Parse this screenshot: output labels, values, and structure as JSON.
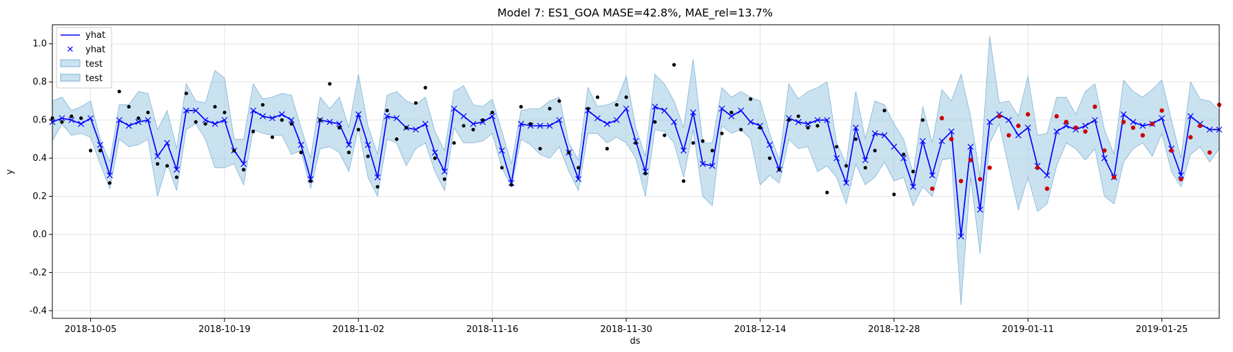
{
  "chart_data": {
    "type": "line",
    "title": "Model 7: ES1_GOA MASE=42.8%, MAE_rel=13.7%",
    "xlabel": "ds",
    "ylabel": "y",
    "x_start": "2018-10-01",
    "x_end": "2019-01-31",
    "ylim": [
      -0.44,
      1.1
    ],
    "grid": true,
    "legend_position": "top-left",
    "x_tick_labels": [
      "2018-10-05",
      "2018-10-19",
      "2018-11-02",
      "2018-11-16",
      "2018-11-30",
      "2018-12-14",
      "2018-12-28",
      "2019-01-11",
      "2019-01-25"
    ],
    "y_tick_labels": [
      "-0.4",
      "-0.2",
      "0.0",
      "0.2",
      "0.4",
      "0.6",
      "0.8",
      "1.0"
    ],
    "legend": [
      "yhat",
      "yhat",
      "test",
      "test"
    ],
    "colors": {
      "line": "#0000ff",
      "band": "#9ecae1",
      "band_edge": "#7fb2d9",
      "actual": "#000000",
      "test_actual": "#cc0000",
      "grid": "#e3e3e3"
    },
    "yhat": [
      0.59,
      0.61,
      0.6,
      0.58,
      0.61,
      0.47,
      0.31,
      0.6,
      0.57,
      0.59,
      0.6,
      0.41,
      0.48,
      0.34,
      0.65,
      0.65,
      0.6,
      0.58,
      0.6,
      0.44,
      0.37,
      0.65,
      0.62,
      0.61,
      0.63,
      0.6,
      0.47,
      0.29,
      0.6,
      0.59,
      0.58,
      0.47,
      0.63,
      0.47,
      0.3,
      0.62,
      0.61,
      0.56,
      0.55,
      0.58,
      0.43,
      0.33,
      0.66,
      0.62,
      0.58,
      0.59,
      0.62,
      0.44,
      0.27,
      0.58,
      0.57,
      0.57,
      0.57,
      0.6,
      0.43,
      0.29,
      0.65,
      0.61,
      0.58,
      0.6,
      0.66,
      0.49,
      0.33,
      0.67,
      0.65,
      0.59,
      0.44,
      0.64,
      0.37,
      0.36,
      0.66,
      0.62,
      0.65,
      0.59,
      0.57,
      0.47,
      0.34,
      0.61,
      0.59,
      0.58,
      0.6,
      0.6,
      0.4,
      0.27,
      0.56,
      0.39,
      0.53,
      0.52,
      0.46,
      0.4,
      0.25,
      0.49,
      0.31,
      0.49,
      0.54,
      -0.01,
      0.46,
      0.13,
      0.59,
      0.63,
      0.6,
      0.52,
      0.56,
      0.36,
      0.31,
      0.54,
      0.57,
      0.55,
      0.57,
      0.6,
      0.4,
      0.3,
      0.63,
      0.59,
      0.57,
      0.58,
      0.61,
      0.45,
      0.31,
      0.62,
      0.58,
      0.55,
      0.55
    ],
    "yhat_lower": [
      0.49,
      0.58,
      0.52,
      0.53,
      0.51,
      0.37,
      0.24,
      0.5,
      0.46,
      0.47,
      0.5,
      0.2,
      0.37,
      0.23,
      0.55,
      0.58,
      0.5,
      0.35,
      0.35,
      0.37,
      0.26,
      0.55,
      0.53,
      0.52,
      0.52,
      0.42,
      0.44,
      0.24,
      0.45,
      0.46,
      0.43,
      0.33,
      0.56,
      0.3,
      0.2,
      0.5,
      0.48,
      0.36,
      0.45,
      0.48,
      0.33,
      0.23,
      0.56,
      0.48,
      0.48,
      0.49,
      0.53,
      0.35,
      0.25,
      0.5,
      0.47,
      0.42,
      0.4,
      0.46,
      0.33,
      0.23,
      0.53,
      0.53,
      0.48,
      0.51,
      0.48,
      0.4,
      0.2,
      0.55,
      0.54,
      0.48,
      0.3,
      0.55,
      0.2,
      0.15,
      0.57,
      0.53,
      0.55,
      0.5,
      0.26,
      0.31,
      0.27,
      0.5,
      0.45,
      0.46,
      0.33,
      0.36,
      0.3,
      0.16,
      0.37,
      0.26,
      0.3,
      0.38,
      0.28,
      0.3,
      0.15,
      0.25,
      0.2,
      0.39,
      0.4,
      -0.37,
      0.3,
      -0.1,
      0.48,
      0.58,
      0.35,
      0.13,
      0.3,
      0.12,
      0.16,
      0.36,
      0.48,
      0.45,
      0.39,
      0.45,
      0.2,
      0.16,
      0.38,
      0.45,
      0.48,
      0.41,
      0.53,
      0.33,
      0.25,
      0.42,
      0.46,
      0.38,
      0.45
    ],
    "yhat_upper": [
      0.7,
      0.72,
      0.65,
      0.67,
      0.7,
      0.5,
      0.38,
      0.68,
      0.68,
      0.75,
      0.74,
      0.55,
      0.65,
      0.45,
      0.79,
      0.7,
      0.69,
      0.86,
      0.82,
      0.5,
      0.5,
      0.79,
      0.71,
      0.72,
      0.74,
      0.73,
      0.56,
      0.4,
      0.72,
      0.66,
      0.72,
      0.56,
      0.84,
      0.57,
      0.42,
      0.73,
      0.75,
      0.7,
      0.68,
      0.72,
      0.54,
      0.44,
      0.75,
      0.78,
      0.68,
      0.67,
      0.71,
      0.54,
      0.37,
      0.65,
      0.66,
      0.66,
      0.7,
      0.72,
      0.48,
      0.39,
      0.77,
      0.67,
      0.68,
      0.7,
      0.83,
      0.56,
      0.41,
      0.84,
      0.79,
      0.7,
      0.56,
      0.92,
      0.48,
      0.48,
      0.77,
      0.72,
      0.75,
      0.72,
      0.7,
      0.53,
      0.39,
      0.79,
      0.71,
      0.75,
      0.77,
      0.8,
      0.48,
      0.37,
      0.75,
      0.5,
      0.7,
      0.68,
      0.58,
      0.5,
      0.32,
      0.67,
      0.48,
      0.76,
      0.7,
      0.84,
      0.62,
      0.3,
      1.04,
      0.69,
      0.7,
      0.62,
      0.83,
      0.52,
      0.53,
      0.72,
      0.72,
      0.63,
      0.75,
      0.79,
      0.55,
      0.42,
      0.81,
      0.75,
      0.72,
      0.76,
      0.81,
      0.6,
      0.4,
      0.8,
      0.71,
      0.7,
      0.65
    ],
    "actual_train": [
      0.61,
      0.59,
      0.62,
      0.61,
      0.44,
      0.44,
      0.27,
      0.75,
      0.67,
      0.61,
      0.64,
      0.37,
      0.36,
      0.3,
      0.74,
      0.59,
      0.58,
      0.67,
      0.64,
      0.44,
      0.34,
      0.54,
      0.68,
      0.51,
      0.6,
      0.58,
      0.43,
      0.28,
      0.6,
      0.79,
      0.56,
      0.43,
      0.55,
      0.41,
      0.25,
      0.65,
      0.5,
      0.56,
      0.69,
      0.77,
      0.4,
      0.29,
      0.48,
      0.57,
      0.55,
      0.6,
      0.64,
      0.35,
      0.26,
      0.67,
      0.58,
      0.45,
      0.66,
      0.7,
      0.43,
      0.35,
      0.66,
      0.72,
      0.45,
      0.68,
      0.72,
      0.48,
      0.32,
      0.59,
      0.52,
      0.89,
      0.28,
      0.48,
      0.49,
      0.44,
      0.53,
      0.64,
      0.55,
      0.71,
      0.56,
      0.4,
      0.34,
      0.6,
      0.62,
      0.56,
      0.57,
      0.22,
      0.46,
      0.36,
      0.5,
      0.35,
      0.44,
      0.65,
      0.21,
      0.42,
      0.33,
      0.6
    ],
    "actual_test": [
      0.24,
      0.61,
      0.5,
      0.28,
      0.39,
      0.29,
      0.35,
      0.62,
      0.52,
      0.57,
      0.63,
      0.35,
      0.24,
      0.62,
      0.59,
      0.56,
      0.54,
      0.67,
      0.44,
      0.3,
      0.59,
      0.56,
      0.52,
      0.58,
      0.65,
      0.44,
      0.29,
      0.51,
      0.57,
      0.43,
      0.68
    ]
  }
}
